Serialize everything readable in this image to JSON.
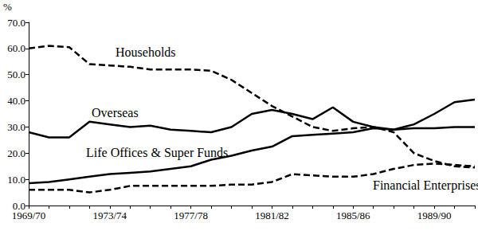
{
  "chart_data": {
    "type": "line",
    "y_label": "%",
    "categories": [
      "1969/70",
      null,
      null,
      null,
      "1973/74",
      null,
      null,
      null,
      "1977/78",
      null,
      null,
      null,
      "1981/82",
      null,
      null,
      null,
      "1985/86",
      null,
      null,
      null,
      "1989/90",
      null,
      null
    ],
    "series": [
      {
        "name": "Households",
        "color": "#000000",
        "line_style": "dashed",
        "values": [
          60,
          61,
          60.5,
          54,
          53.5,
          53,
          52,
          52,
          52,
          51.5,
          48,
          43,
          38,
          34,
          30,
          28.5,
          29.5,
          30,
          28,
          20,
          17,
          15,
          14.5
        ]
      },
      {
        "name": "Overseas",
        "color": "#000000",
        "line_style": "solid",
        "values": [
          28,
          26,
          26,
          32,
          31,
          30,
          30.5,
          29,
          28.5,
          28,
          30,
          35,
          36.5,
          35,
          33,
          37.5,
          32,
          30,
          29,
          31,
          35,
          39.5,
          40.5
        ]
      },
      {
        "name": "Life Offices & Super Funds",
        "color": "#000000",
        "line_style": "solid",
        "values": [
          8.5,
          9,
          10,
          11,
          12,
          12.5,
          13,
          14,
          15,
          17.5,
          19,
          21,
          22.5,
          26.5,
          27,
          27.5,
          28,
          29.5,
          29,
          29.5,
          29.5,
          30,
          30
        ]
      },
      {
        "name": "Financial Enterprises",
        "color": "#000000",
        "line_style": "dashed",
        "values": [
          6,
          6,
          6,
          5,
          6,
          7.5,
          7.5,
          7.5,
          7.5,
          7.5,
          8,
          8,
          9,
          12,
          11.5,
          11,
          11,
          12,
          14,
          15.5,
          16,
          15.5,
          15
        ]
      }
    ],
    "ylim": [
      0,
      70
    ],
    "yticks": [
      {
        "value": 0,
        "label": "0.0"
      },
      {
        "value": 10,
        "label": "10.0"
      },
      {
        "value": 20,
        "label": "20.0"
      },
      {
        "value": 30,
        "label": "30.0"
      },
      {
        "value": 40,
        "label": "40.0"
      },
      {
        "value": 50,
        "label": "50.0"
      },
      {
        "value": 60,
        "label": "60.0"
      },
      {
        "value": 70,
        "label": "70.0"
      }
    ],
    "grid": false
  }
}
